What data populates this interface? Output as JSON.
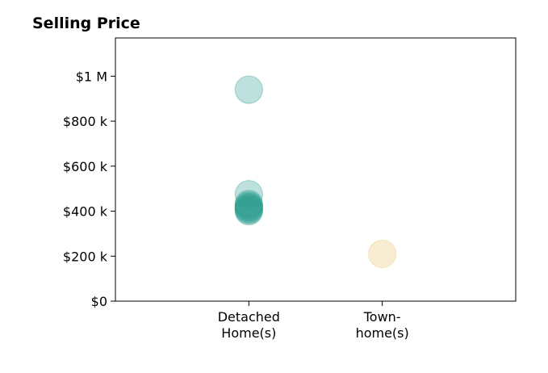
{
  "chart_data": {
    "type": "scatter",
    "title": "Selling Price",
    "xlabel": "",
    "ylabel": "",
    "categories": [
      [
        "Detached",
        "Home(s)"
      ],
      [
        "Town-",
        "home(s)"
      ]
    ],
    "x_range": [
      -1,
      2
    ],
    "ylim": [
      0,
      1170000
    ],
    "y_ticks": [
      0,
      200000,
      400000,
      600000,
      800000,
      1000000
    ],
    "y_tick_labels": [
      "$0",
      "$200 k",
      "$400 k",
      "$600 k",
      "$800 k",
      "$1 M"
    ],
    "grid": false,
    "series": [
      {
        "category_index": 0,
        "color": "#2a9d8f",
        "values": [
          940000,
          475000,
          432000,
          425000,
          420000,
          415000,
          410000,
          405000,
          400000
        ]
      },
      {
        "category_index": 1,
        "color": "#e9c46a",
        "values": [
          210000
        ]
      }
    ]
  }
}
